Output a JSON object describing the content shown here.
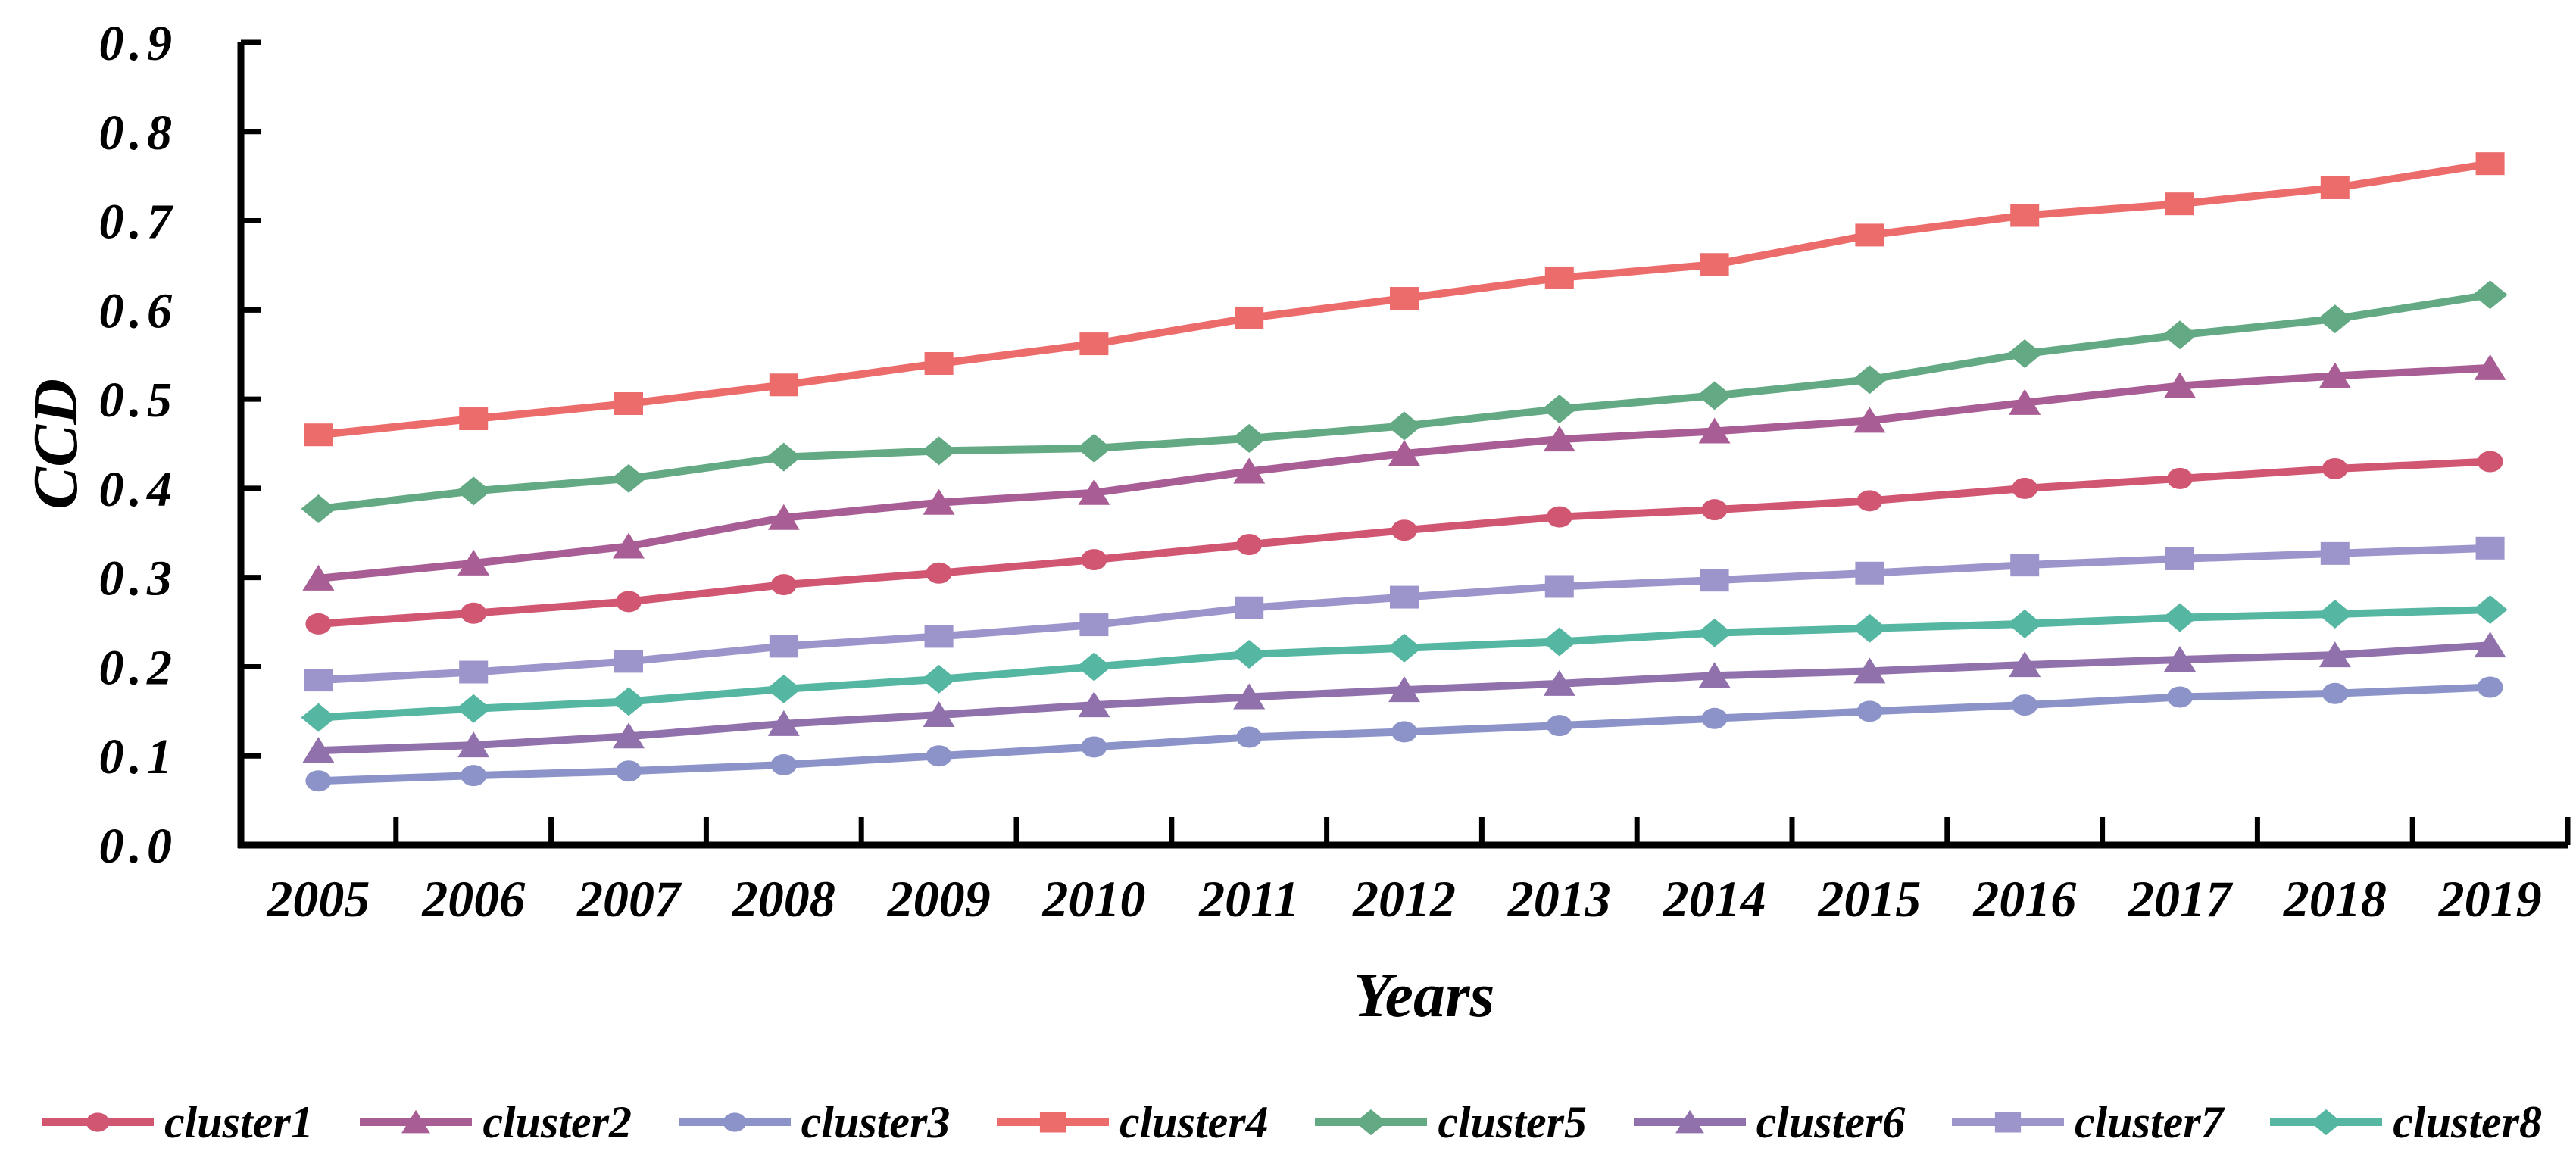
{
  "chart_data": {
    "type": "line",
    "title": "",
    "xlabel": "Years",
    "ylabel": "CCD",
    "ylim": [
      0.0,
      0.9
    ],
    "y_tick_step": 0.1,
    "y_tick_labels": [
      "0.0",
      "0.1",
      "0.2",
      "0.3",
      "0.4",
      "0.5",
      "0.6",
      "0.7",
      "0.8",
      "0.9"
    ],
    "grid": "off",
    "legend_position": "bottom",
    "x": [
      "2005",
      "2006",
      "2007",
      "2008",
      "2009",
      "2010",
      "2011",
      "2012",
      "2013",
      "2014",
      "2015",
      "2016",
      "2017",
      "2018",
      "2019"
    ],
    "series": [
      {
        "name": "cluster1",
        "marker": "circle",
        "color": "#d05672",
        "values": [
          0.248,
          0.26,
          0.273,
          0.292,
          0.305,
          0.32,
          0.337,
          0.353,
          0.368,
          0.376,
          0.386,
          0.4,
          0.411,
          0.422,
          0.43
        ]
      },
      {
        "name": "cluster2",
        "marker": "triangle",
        "color": "#a85e94",
        "values": [
          0.299,
          0.316,
          0.335,
          0.367,
          0.384,
          0.395,
          0.419,
          0.439,
          0.455,
          0.464,
          0.476,
          0.496,
          0.515,
          0.526,
          0.535
        ]
      },
      {
        "name": "cluster3",
        "marker": "circle",
        "color": "#8b93c9",
        "values": [
          0.072,
          0.078,
          0.083,
          0.09,
          0.1,
          0.11,
          0.121,
          0.127,
          0.134,
          0.142,
          0.15,
          0.157,
          0.166,
          0.17,
          0.177
        ]
      },
      {
        "name": "cluster4",
        "marker": "square",
        "color": "#ec6b6b",
        "values": [
          0.46,
          0.478,
          0.495,
          0.516,
          0.54,
          0.562,
          0.591,
          0.613,
          0.636,
          0.651,
          0.684,
          0.706,
          0.719,
          0.737,
          0.764
        ]
      },
      {
        "name": "cluster5",
        "marker": "diamond",
        "color": "#63a983",
        "values": [
          0.377,
          0.397,
          0.411,
          0.435,
          0.442,
          0.445,
          0.456,
          0.47,
          0.489,
          0.504,
          0.522,
          0.551,
          0.572,
          0.59,
          0.617
        ]
      },
      {
        "name": "cluster6",
        "marker": "triangle",
        "color": "#9171ac",
        "values": [
          0.106,
          0.112,
          0.122,
          0.136,
          0.146,
          0.157,
          0.166,
          0.174,
          0.181,
          0.19,
          0.195,
          0.202,
          0.208,
          0.213,
          0.224
        ]
      },
      {
        "name": "cluster7",
        "marker": "square",
        "color": "#9c95cc",
        "values": [
          0.185,
          0.194,
          0.206,
          0.223,
          0.234,
          0.247,
          0.266,
          0.278,
          0.29,
          0.297,
          0.305,
          0.314,
          0.321,
          0.327,
          0.333
        ]
      },
      {
        "name": "cluster8",
        "marker": "diamond",
        "color": "#55b6a2",
        "values": [
          0.143,
          0.153,
          0.161,
          0.175,
          0.186,
          0.2,
          0.214,
          0.221,
          0.228,
          0.238,
          0.243,
          0.248,
          0.255,
          0.259,
          0.264
        ]
      }
    ],
    "axis_color": "#000000"
  }
}
